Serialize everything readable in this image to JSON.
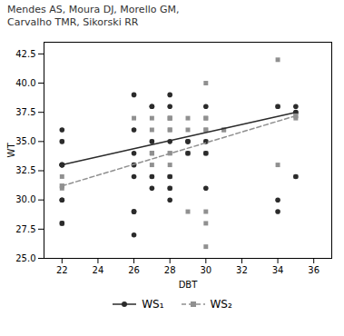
{
  "chart_data": {
    "type": "scatter",
    "annotations": [
      "Mendes AS, Moura DJ, Morello GM,",
      "Carvalho TMR, Sikorski RR"
    ],
    "xlabel": "DBT",
    "ylabel": "WT",
    "xlim": [
      21,
      37
    ],
    "ylim": [
      25.0,
      43.5
    ],
    "xticks": [
      22,
      24,
      26,
      28,
      30,
      32,
      34,
      36
    ],
    "yticks": [
      {
        "value": 25.0,
        "label": "25.0"
      },
      27.5,
      {
        "value": 30.0,
        "label": "30.0"
      },
      32.5,
      {
        "value": 35.0,
        "label": "35.0"
      },
      37.5,
      {
        "value": 40.0,
        "label": "40.0"
      },
      42.5
    ],
    "grid": false,
    "legend": "bottom",
    "series": [
      {
        "type": "scatter",
        "color": "#909090",
        "marker": "square",
        "x": [
          22,
          22,
          22,
          22,
          22,
          26,
          26,
          26,
          26,
          27,
          27,
          27,
          27,
          27,
          27,
          27,
          27,
          28,
          28,
          28,
          28,
          28,
          28,
          28,
          28,
          28,
          28,
          28,
          29,
          29,
          29,
          29,
          29,
          29,
          30,
          30,
          30,
          30,
          30,
          30,
          30,
          30,
          30,
          30,
          30,
          31,
          31,
          34,
          34,
          34,
          35,
          35
        ],
        "values": [
          28,
          28,
          31,
          32,
          35,
          29,
          33,
          33,
          37,
          32,
          33,
          34,
          34,
          34,
          35,
          36,
          37,
          31,
          32,
          32,
          33,
          34,
          34,
          36,
          36,
          37,
          37,
          37,
          29,
          34,
          34,
          35,
          36,
          37,
          26,
          28,
          29,
          34,
          34,
          35,
          36,
          36,
          37,
          37,
          40,
          36,
          36,
          33,
          38,
          42,
          32,
          37
        ]
      },
      {
        "type": "scatter",
        "color": "#2b2b2b",
        "marker": "circle",
        "x": [
          22,
          22,
          22,
          22,
          22,
          22,
          22,
          26,
          26,
          26,
          26,
          26,
          26,
          26,
          26,
          27,
          27,
          27,
          27,
          27,
          28,
          28,
          28,
          28,
          28,
          28,
          29,
          29,
          29,
          30,
          30,
          30,
          30,
          34,
          34,
          34,
          35,
          35
        ],
        "values": [
          28,
          30,
          30,
          33,
          33,
          35,
          36,
          27,
          29,
          29,
          32,
          33,
          34,
          36,
          39,
          31,
          32,
          35,
          38,
          38,
          30,
          31,
          32,
          35,
          38,
          39,
          34,
          35,
          35,
          31,
          34,
          35,
          38,
          29,
          30,
          38,
          32,
          38
        ]
      },
      {
        "type": "line",
        "name": "WS₁",
        "color": "#2b2b2b",
        "marker": "circle",
        "line_style": "solid",
        "x": [
          22,
          35
        ],
        "values": [
          33.0,
          37.5
        ]
      },
      {
        "type": "line",
        "name": "WS₂",
        "color": "#909090",
        "marker": "square",
        "line_style": "dashed",
        "x": [
          22,
          35
        ],
        "values": [
          31.2,
          37.2
        ]
      }
    ]
  }
}
